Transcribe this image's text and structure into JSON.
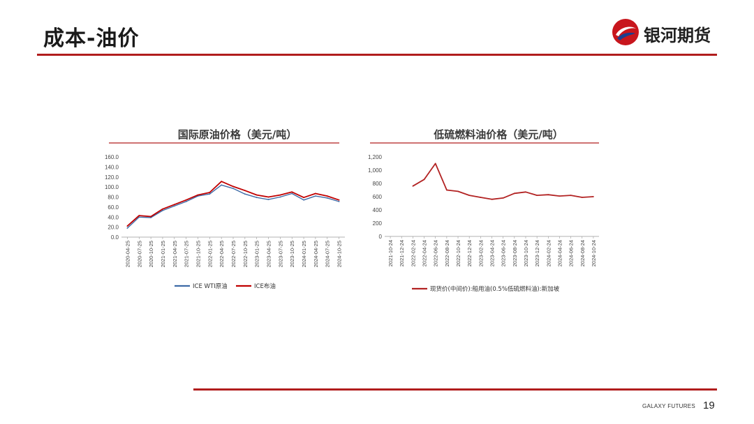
{
  "header": {
    "title": "成本-油价",
    "logo_text": "银河期货"
  },
  "footer": {
    "brand": "GALAXY FUTURES",
    "page_number": "19"
  },
  "colors": {
    "accent": "#b11d1d",
    "wti": "#3d6aa6",
    "brent": "#c00000",
    "lsfo": "#b22222"
  },
  "chart_data": [
    {
      "type": "line",
      "title": "国际原油价格（美元/吨）",
      "ylim": [
        0,
        160
      ],
      "yticks": [
        "0.0",
        "20.0",
        "40.0",
        "60.0",
        "80.0",
        "100.0",
        "120.0",
        "140.0",
        "160.0"
      ],
      "x": [
        "2020-04-25",
        "2020-07-25",
        "2020-10-25",
        "2021-01-25",
        "2021-04-25",
        "2021-07-25",
        "2021-10-25",
        "2022-01-25",
        "2022-04-25",
        "2022-07-25",
        "2022-10-25",
        "2023-01-25",
        "2023-04-25",
        "2023-07-25",
        "2023-10-25",
        "2024-01-25",
        "2024-04-25",
        "2024-07-25",
        "2024-10-25"
      ],
      "series": [
        {
          "name": "ICE WTI原油",
          "values": [
            18,
            40,
            39,
            53,
            62,
            71,
            82,
            86,
            104,
            97,
            86,
            79,
            75,
            80,
            87,
            74,
            82,
            78,
            71
          ]
        },
        {
          "name": "ICE布油",
          "values": [
            22,
            43,
            41,
            56,
            65,
            74,
            84,
            89,
            111,
            101,
            93,
            84,
            80,
            84,
            90,
            79,
            87,
            82,
            74
          ]
        }
      ]
    },
    {
      "type": "line",
      "title": "低硫燃料油价格（美元/吨）",
      "ylim": [
        0,
        1200
      ],
      "yticks": [
        "0",
        "200",
        "400",
        "600",
        "800",
        "1,000",
        "1,200"
      ],
      "x": [
        "2021-10-24",
        "2021-12-24",
        "2022-02-24",
        "2022-04-24",
        "2022-06-24",
        "2022-08-24",
        "2022-10-24",
        "2022-12-24",
        "2023-02-24",
        "2023-04-24",
        "2023-06-24",
        "2023-08-24",
        "2023-10-24",
        "2023-12-24",
        "2024-02-24",
        "2024-04-24",
        "2024-06-24",
        "2024-08-24",
        "2024-10-24"
      ],
      "series": [
        {
          "name": "现货价(中间价):船用油(0.5%低硫燃料油):新加坡",
          "values": [
            null,
            null,
            760,
            860,
            1100,
            700,
            680,
            620,
            590,
            560,
            580,
            650,
            670,
            620,
            630,
            610,
            620,
            590,
            600
          ]
        }
      ]
    }
  ]
}
